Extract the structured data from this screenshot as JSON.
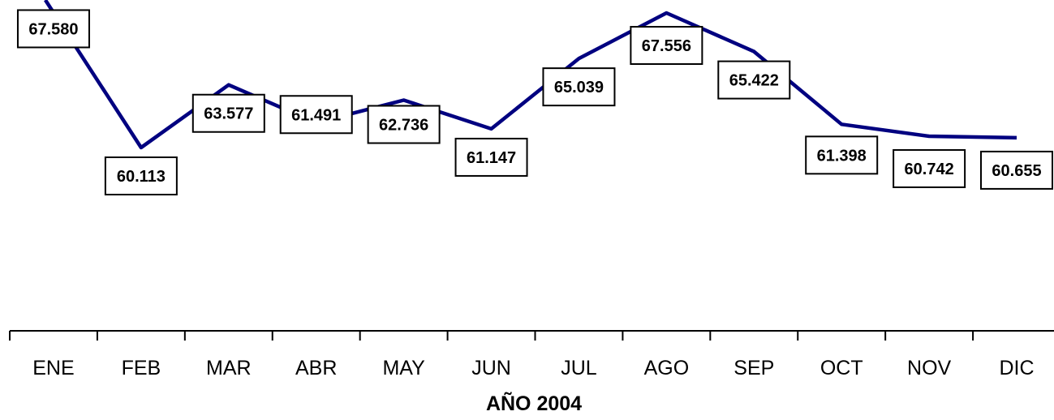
{
  "chart_data": {
    "type": "line",
    "categories": [
      "ENE",
      "FEB",
      "MAR",
      "ABR",
      "MAY",
      "JUN",
      "JUL",
      "AGO",
      "SEP",
      "OCT",
      "NOV",
      "DIC"
    ],
    "series": [
      {
        "values": [
          67580,
          60113,
          63577,
          61491,
          62736,
          61147,
          65039,
          67556,
          65422,
          61398,
          60742,
          60655
        ],
        "labels": [
          "67.580",
          "60.113",
          "63.577",
          "61.491",
          "62.736",
          "61.147",
          "65.039",
          "67.556",
          "65.422",
          "61.398",
          "60.742",
          "60.655"
        ],
        "color": "#000080"
      }
    ],
    "xlabel": "AÑO 2004",
    "ylabel": "",
    "data_labels": true,
    "legend": "none",
    "grid": false
  }
}
